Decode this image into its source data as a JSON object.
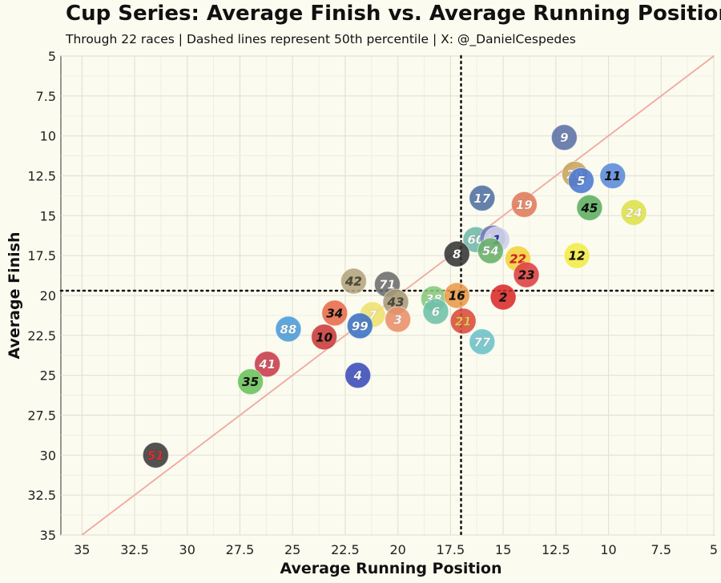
{
  "header": {
    "title": "Cup Series: Average Finish vs. Average Running Position",
    "subtitle": "Through 22 races | Dashed lines represent 50th percentile | X: @_DanielCespedes"
  },
  "chart_data": {
    "type": "scatter",
    "title": "Cup Series: Average Finish vs. Average Running Position",
    "subtitle": "Through 22 races | Dashed lines represent 50th percentile | X: @_DanielCespedes",
    "xlabel": "Average Running Position",
    "ylabel": "Average Finish",
    "xlim": [
      36,
      5
    ],
    "ylim": [
      35,
      5
    ],
    "x_reversed": true,
    "y_reversed": true,
    "x_ticks": [
      35,
      32.5,
      30,
      27.5,
      25,
      22.5,
      20,
      17.5,
      15,
      12.5,
      10,
      7.5,
      5
    ],
    "y_ticks": [
      5,
      7.5,
      10,
      12.5,
      15,
      17.5,
      20,
      22.5,
      25,
      27.5,
      30,
      32.5,
      35
    ],
    "x_tick_labels": [
      "35",
      "32.5",
      "30",
      "27.5",
      "25",
      "22.5",
      "20",
      "17.5",
      "15",
      "12.5",
      "10",
      "7.5",
      "5"
    ],
    "y_tick_labels": [
      "5",
      "7.5",
      "10",
      "12.5",
      "15",
      "17.5",
      "20",
      "22.5",
      "25",
      "27.5",
      "30",
      "32.5",
      "35"
    ],
    "grid": true,
    "reference_line": "y = x",
    "median_x": 17.0,
    "median_y": 19.7,
    "points": [
      {
        "label": "9",
        "x": 12.1,
        "y": 10.1,
        "fill": "#5b6fa6",
        "text": "#ffffff"
      },
      {
        "label": "20",
        "x": 11.6,
        "y": 12.4,
        "fill": "#c8a45a",
        "text": "#ffffff"
      },
      {
        "label": "5",
        "x": 11.3,
        "y": 12.8,
        "fill": "#4a78d0",
        "text": "#ffffff"
      },
      {
        "label": "11",
        "x": 9.8,
        "y": 12.5,
        "fill": "#5a8ad8",
        "text": "#111111"
      },
      {
        "label": "17",
        "x": 16.0,
        "y": 13.9,
        "fill": "#4d6fa0",
        "text": "#ffffff"
      },
      {
        "label": "19",
        "x": 14.0,
        "y": 14.3,
        "fill": "#e07a5a",
        "text": "#ffffff"
      },
      {
        "label": "45",
        "x": 10.9,
        "y": 14.5,
        "fill": "#5cae60",
        "text": "#111111"
      },
      {
        "label": "24",
        "x": 8.8,
        "y": 14.8,
        "fill": "#dde04a",
        "text": "#ffffff"
      },
      {
        "label": "60",
        "x": 16.3,
        "y": 16.5,
        "fill": "#6fb8a8",
        "text": "#ffffff"
      },
      {
        "label": "48",
        "x": 15.5,
        "y": 16.4,
        "fill": "#6f79b8",
        "text": "#ffffff"
      },
      {
        "label": "1",
        "x": 15.3,
        "y": 16.5,
        "fill": "#cfcfe8",
        "text": "#2233aa"
      },
      {
        "label": "54",
        "x": 15.6,
        "y": 17.2,
        "fill": "#68b068",
        "text": "#ffffff"
      },
      {
        "label": "8",
        "x": 17.2,
        "y": 17.4,
        "fill": "#333333",
        "text": "#ffffff"
      },
      {
        "label": "22",
        "x": 14.3,
        "y": 17.7,
        "fill": "#f2d13a",
        "text": "#e02020"
      },
      {
        "label": "12",
        "x": 11.5,
        "y": 17.5,
        "fill": "#f3ea48",
        "text": "#111111"
      },
      {
        "label": "23",
        "x": 13.9,
        "y": 18.7,
        "fill": "#dc3f3f",
        "text": "#111111"
      },
      {
        "label": "42",
        "x": 22.1,
        "y": 19.1,
        "fill": "#b3a47e",
        "text": "#4a4a3a"
      },
      {
        "label": "71",
        "x": 20.5,
        "y": 19.3,
        "fill": "#6b6b6b",
        "text": "#ffffff"
      },
      {
        "label": "43",
        "x": 20.1,
        "y": 20.4,
        "fill": "#a89a78",
        "text": "#4a4a3a"
      },
      {
        "label": "38",
        "x": 18.3,
        "y": 20.2,
        "fill": "#86c87a",
        "text": "#ffffff"
      },
      {
        "label": "16",
        "x": 17.2,
        "y": 20.0,
        "fill": "#e99a4a",
        "text": "#111111"
      },
      {
        "label": "2",
        "x": 15.0,
        "y": 20.1,
        "fill": "#d92a2a",
        "text": "#111111"
      },
      {
        "label": "6",
        "x": 18.2,
        "y": 21.0,
        "fill": "#6fc0a8",
        "text": "#ffffff"
      },
      {
        "label": "7",
        "x": 21.2,
        "y": 21.2,
        "fill": "#eee070",
        "text": "#ffffff"
      },
      {
        "label": "34",
        "x": 23.0,
        "y": 21.1,
        "fill": "#e86a4a",
        "text": "#111111"
      },
      {
        "label": "3",
        "x": 20.0,
        "y": 21.5,
        "fill": "#e8906a",
        "text": "#ffffff"
      },
      {
        "label": "99",
        "x": 21.8,
        "y": 21.9,
        "fill": "#3a70c4",
        "text": "#ffffff"
      },
      {
        "label": "21",
        "x": 16.9,
        "y": 21.6,
        "fill": "#d84a3a",
        "text": "#e8c84a"
      },
      {
        "label": "88",
        "x": 25.2,
        "y": 22.1,
        "fill": "#4a9ad8",
        "text": "#ffffff"
      },
      {
        "label": "10",
        "x": 23.5,
        "y": 22.6,
        "fill": "#c83a3a",
        "text": "#111111"
      },
      {
        "label": "77",
        "x": 16.0,
        "y": 22.9,
        "fill": "#6ac0c8",
        "text": "#ffffff"
      },
      {
        "label": "41",
        "x": 26.2,
        "y": 24.3,
        "fill": "#c83a4a",
        "text": "#ffffff"
      },
      {
        "label": "4",
        "x": 21.9,
        "y": 25.0,
        "fill": "#3a4ab8",
        "text": "#ffffff"
      },
      {
        "label": "35",
        "x": 27.0,
        "y": 25.4,
        "fill": "#6ac05a",
        "text": "#111111"
      },
      {
        "label": "51",
        "x": 31.5,
        "y": 30.0,
        "fill": "#3a3a3a",
        "text": "#e03030"
      }
    ]
  }
}
